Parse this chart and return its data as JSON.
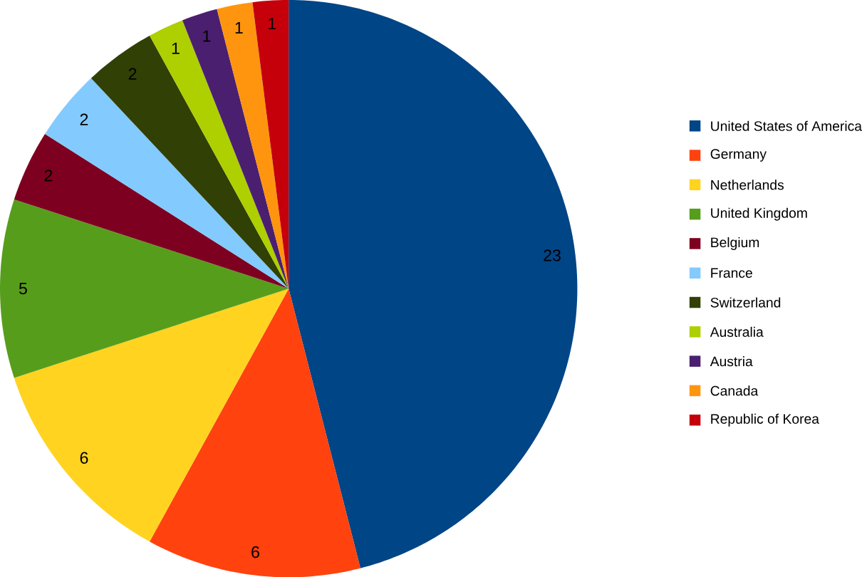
{
  "chart_data": {
    "type": "pie",
    "categories": [
      "United States of America",
      "Germany",
      "Netherlands",
      "United Kingdom",
      "Belgium",
      "France",
      "Switzerland",
      "Australia",
      "Austria",
      "Canada",
      "Republic of Korea"
    ],
    "values": [
      23,
      6,
      6,
      5,
      2,
      2,
      2,
      1,
      1,
      1,
      1
    ],
    "colors": [
      "#004586",
      "#ff420e",
      "#ffd320",
      "#579d1c",
      "#7e0021",
      "#83caff",
      "#314004",
      "#aecf00",
      "#4b1f6f",
      "#ff950e",
      "#c5000b"
    ],
    "data_labels": true,
    "legend": "right"
  }
}
